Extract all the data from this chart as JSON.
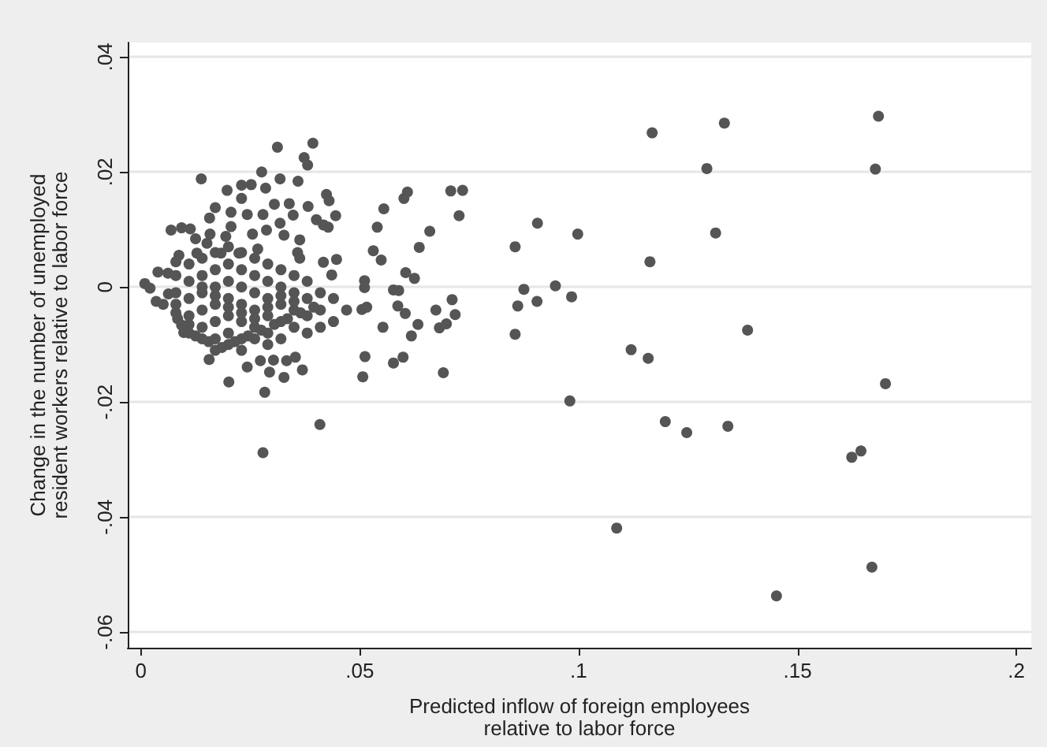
{
  "chart_data": {
    "type": "scatter",
    "xlabel": "Predicted inflow of foreign employees\nrelative to labor force",
    "ylabel": "Change in the number of unemployed\nresident workers relative to labor force",
    "xlim": [
      -0.003,
      0.2034
    ],
    "ylim": [
      -0.0627,
      0.0425
    ],
    "xticks": [
      {
        "value": 0,
        "label": "0"
      },
      {
        "value": 0.05,
        "label": ".05"
      },
      {
        "value": 0.1,
        "label": ".1"
      },
      {
        "value": 0.15,
        "label": ".15"
      },
      {
        "value": 0.2,
        "label": ".2"
      }
    ],
    "yticks": [
      {
        "value": -0.06,
        "label": "-.06"
      },
      {
        "value": -0.04,
        "label": "-.04"
      },
      {
        "value": -0.02,
        "label": "-.02"
      },
      {
        "value": 0,
        "label": "0"
      },
      {
        "value": 0.02,
        "label": ".02"
      },
      {
        "value": 0.04,
        "label": ".04"
      }
    ],
    "grid": "y",
    "marker": "circle",
    "series": [
      {
        "color": "#555555",
        "x": [
          0.1685,
          0.1333,
          0.1168,
          0.1293,
          0.1678,
          0.0906,
          0.0998,
          0.1313,
          0.1163,
          0.0875,
          0.0947,
          0.0905,
          0.0984,
          0.1386,
          0.112,
          0.1159,
          0.1701,
          0.098,
          0.1198,
          0.1247,
          0.1341,
          0.1624,
          0.1645,
          0.1087,
          0.167,
          0.1452,
          0.0855,
          0.0861,
          0.0855,
          0.0708,
          0.0735,
          0.0727,
          0.066,
          0.0636,
          0.0609,
          0.0601,
          0.0555,
          0.054,
          0.0531,
          0.0549,
          0.0511,
          0.0511,
          0.0505,
          0.0516,
          0.0605,
          0.0625,
          0.0577,
          0.0589,
          0.0587,
          0.0604,
          0.0633,
          0.0618,
          0.0553,
          0.0674,
          0.0682,
          0.0698,
          0.0711,
          0.0718,
          0.0577,
          0.0599,
          0.0512,
          0.0507,
          0.0691,
          0.0409,
          0.0279,
          0.0283,
          0.0201,
          0.0327,
          0.0294,
          0.0369,
          0.0243,
          0.0156,
          0.0273,
          0.0303,
          0.0333,
          0.0353,
          0.0393,
          0.0312,
          0.0373,
          0.0381,
          0.0276,
          0.0318,
          0.0359,
          0.0138,
          0.0197,
          0.023,
          0.0252,
          0.0285,
          0.0305,
          0.0339,
          0.0348,
          0.0382,
          0.0424,
          0.043,
          0.0445,
          0.0401,
          0.0417,
          0.0428,
          0.017,
          0.0206,
          0.0069,
          0.0093,
          0.0113,
          0.0157,
          0.023,
          0.0243,
          0.0279,
          0.0318,
          0.0327,
          0.0363,
          0.0287,
          0.0206,
          0.0158,
          0.0125,
          0.0151,
          0.0194,
          0.0255,
          0.0087,
          0.0128,
          0.0183,
          0.0224,
          0.0267,
          0.0358,
          0.0363,
          0.0417,
          0.0447,
          0.0436,
          0.0009,
          0.0021,
          0.0039,
          0.0035,
          0.0051,
          0.0062,
          0.0063,
          0.008,
          0.0084,
          0.0098,
          0.0093,
          0.008,
          0.008,
          0.008,
          0.008,
          0.011,
          0.011,
          0.011,
          0.011,
          0.011,
          0.011,
          0.014,
          0.014,
          0.014,
          0.014,
          0.014,
          0.014,
          0.014,
          0.017,
          0.017,
          0.017,
          0.017,
          0.017,
          0.017,
          0.017,
          0.017,
          0.02,
          0.02,
          0.02,
          0.02,
          0.02,
          0.02,
          0.02,
          0.02,
          0.023,
          0.023,
          0.023,
          0.023,
          0.023,
          0.023,
          0.023,
          0.023,
          0.026,
          0.026,
          0.026,
          0.026,
          0.026,
          0.026,
          0.026,
          0.029,
          0.029,
          0.029,
          0.029,
          0.029,
          0.029,
          0.029,
          0.032,
          0.032,
          0.032,
          0.032,
          0.032,
          0.032,
          0.035,
          0.035,
          0.035,
          0.035,
          0.035,
          0.038,
          0.038,
          0.038,
          0.038,
          0.041,
          0.041,
          0.041,
          0.044,
          0.044,
          0.047,
          0.0125,
          0.0155,
          0.0185,
          0.0215,
          0.0245,
          0.0275,
          0.0305,
          0.0335,
          0.0365,
          0.0395
        ],
        "values": [
          0.0297,
          0.0285,
          0.0268,
          0.0206,
          0.0205,
          0.0111,
          0.0092,
          0.0094,
          0.0044,
          -0.0004,
          0.0002,
          -0.0025,
          -0.0017,
          -0.0075,
          -0.0109,
          -0.0124,
          -0.0168,
          -0.0198,
          -0.0234,
          -0.0253,
          -0.0242,
          -0.0296,
          -0.0285,
          -0.0419,
          -0.0487,
          -0.0537,
          0.007,
          -0.0033,
          -0.0082,
          0.0167,
          0.0168,
          0.0124,
          0.0097,
          0.0069,
          0.0165,
          0.0154,
          0.0136,
          0.0104,
          0.0063,
          0.0047,
          0.0011,
          -0.0001,
          -0.0039,
          -0.0035,
          0.0025,
          0.0015,
          -0.0005,
          -0.0006,
          -0.0033,
          -0.0046,
          -0.0065,
          -0.0085,
          -0.007,
          -0.004,
          -0.0071,
          -0.0064,
          -0.0022,
          -0.0048,
          -0.0132,
          -0.0122,
          -0.0121,
          -0.0156,
          -0.0149,
          -0.0239,
          -0.0288,
          -0.0183,
          -0.0165,
          -0.0157,
          -0.0148,
          -0.0144,
          -0.0139,
          -0.0126,
          -0.0128,
          -0.0127,
          -0.0128,
          -0.0122,
          0.025,
          0.0243,
          0.0225,
          0.0212,
          0.02,
          0.0188,
          0.0184,
          0.0188,
          0.0168,
          0.0177,
          0.0178,
          0.0172,
          0.0144,
          0.0145,
          0.0125,
          0.014,
          0.0161,
          0.015,
          0.0124,
          0.0117,
          0.0108,
          0.0104,
          0.0138,
          0.013,
          0.0099,
          0.0103,
          0.0101,
          0.012,
          0.0154,
          0.0126,
          0.0126,
          0.0111,
          0.009,
          0.0082,
          0.0099,
          0.0105,
          0.0092,
          0.0084,
          0.0076,
          0.0088,
          0.0092,
          0.0055,
          0.0059,
          0.0059,
          0.0059,
          0.0066,
          0.006,
          0.005,
          0.0043,
          0.0048,
          0.0021,
          0.0006,
          -0.0002,
          0.0026,
          -0.0025,
          -0.003,
          0.0024,
          -0.0012,
          0.0044,
          -0.0055,
          -0.0079,
          -0.0066,
          0.002,
          -0.001,
          -0.003,
          -0.0045,
          0.004,
          0.001,
          -0.002,
          -0.005,
          -0.008,
          -0.0065,
          0.005,
          0.002,
          -0.001,
          -0.004,
          -0.007,
          -0.009,
          0.0,
          0.006,
          0.003,
          0,
          -0.003,
          -0.006,
          -0.009,
          -0.011,
          -0.0015,
          0.007,
          0.004,
          0.001,
          -0.002,
          -0.005,
          -0.008,
          -0.01,
          -0.0035,
          0.006,
          0.003,
          0,
          -0.003,
          -0.006,
          -0.009,
          -0.011,
          -0.0045,
          0.005,
          0.002,
          -0.001,
          -0.004,
          -0.007,
          -0.009,
          -0.0055,
          0.004,
          0.001,
          -0.002,
          -0.005,
          -0.008,
          -0.01,
          -0.0035,
          0.003,
          0,
          -0.003,
          -0.006,
          -0.009,
          -0.0015,
          0.002,
          -0.001,
          -0.004,
          -0.007,
          -0.0025,
          0.001,
          -0.002,
          -0.005,
          -0.008,
          -0.001,
          -0.004,
          -0.007,
          -0.002,
          -0.006,
          -0.004,
          -0.0085,
          -0.0095,
          -0.0105,
          -0.0095,
          -0.0085,
          -0.0075,
          -0.0065,
          -0.0055,
          -0.0045,
          -0.0035
        ]
      }
    ]
  }
}
